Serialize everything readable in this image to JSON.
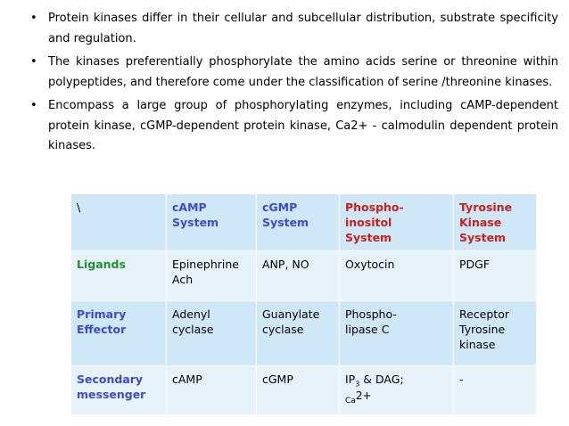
{
  "bullets": [
    "Protein kinases differ in their cellular and subcellular distribution, substrate specificity and regulation.",
    "The kinases preferentially phosphorylate the amino acids serine or threonine within polypeptides, and therefore come under the classification of serine /threonine kinases.",
    "Encompass a large group of phosphorylating enzymes, including cAMP-dependent protein kinase, cGMP-dependent protein kinase, Ca2+ - calmodulin dependent protein kinases."
  ],
  "bullet_symbol": "•",
  "table": {
    "corner": "\\",
    "headers": [
      {
        "line1": "cAMP",
        "line2": "System"
      },
      {
        "line1": "cGMP",
        "line2": "System"
      },
      {
        "line1": "Phospho-",
        "line2": "inositol",
        "line3": "System"
      },
      {
        "line1": "Tyrosine",
        "line2": "Kinase",
        "line3": "System"
      }
    ],
    "rows": [
      {
        "label": "Ligands",
        "cells": [
          {
            "line1": "Epinephrine",
            "line2": "Ach"
          },
          {
            "line1": "ANP, NO"
          },
          {
            "line1": "Oxytocin"
          },
          {
            "line1": "PDGF"
          }
        ]
      },
      {
        "label_line1": "Primary",
        "label_line2": "Effector",
        "cells": [
          {
            "line1": "Adenyl",
            "line2": "cyclase"
          },
          {
            "line1": "Guanylate",
            "line2": "cyclase"
          },
          {
            "line1": "Phospho-",
            "line2": "lipase C"
          },
          {
            "line1": "Receptor",
            "line2": "Tyrosine",
            "line3": "kinase"
          }
        ]
      },
      {
        "label_line1": "Secondary",
        "label_line2": "messenger",
        "cells": [
          {
            "line1": "cAMP"
          },
          {
            "line1": "cGMP"
          },
          {
            "ip": "IP",
            "ip_sub": "3",
            "ip_rest": " & DAG;",
            "ca": "Ca",
            "ca_sup": "2+"
          },
          {
            "line1": "-"
          }
        ]
      }
    ]
  },
  "colors": {
    "header_text": "#3b4bd0",
    "header_red": "#c4231b",
    "row_label": "#1f8f27",
    "cell_dark": "#cfe7f6",
    "cell_light": "#e6f3fb"
  }
}
